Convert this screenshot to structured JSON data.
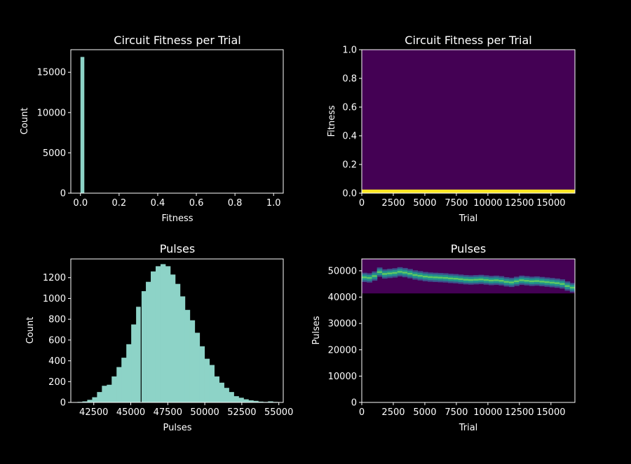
{
  "colors": {
    "background": "#000000",
    "foreground": "#ffffff",
    "hist_bar": "#8dd3c7",
    "heat_low": "#440154",
    "heat_mid": "#21918c",
    "heat_mid2": "#5ec962",
    "heat_high": "#fde725"
  },
  "chart_data": [
    {
      "type": "bar",
      "title": "Circuit Fitness per Trial",
      "xlabel": "Fitness",
      "ylabel": "Count",
      "xlim": [
        -0.05,
        1.05
      ],
      "ylim": [
        0,
        17800
      ],
      "xticks": [
        0.0,
        0.2,
        0.4,
        0.6,
        0.8,
        1.0
      ],
      "xtick_labels": [
        "0.0",
        "0.2",
        "0.4",
        "0.6",
        "0.8",
        "1.0"
      ],
      "yticks": [
        0,
        5000,
        10000,
        15000
      ],
      "ytick_labels": [
        "0",
        "5000",
        "10000",
        "15000"
      ],
      "bins": [
        {
          "x0": 0.0,
          "x1": 0.02,
          "count": 16900
        }
      ]
    },
    {
      "type": "heatmap",
      "title": "Circuit Fitness per Trial",
      "xlabel": "Trial",
      "ylabel": "Fitness",
      "xlim": [
        0,
        16900
      ],
      "ylim": [
        0,
        1.0
      ],
      "xticks": [
        0,
        2500,
        5000,
        7500,
        10000,
        12500,
        15000
      ],
      "xtick_labels": [
        "0",
        "2500",
        "5000",
        "7500",
        "10000",
        "12500",
        "15000"
      ],
      "yticks": [
        0.0,
        0.2,
        0.4,
        0.6,
        0.8,
        1.0
      ],
      "ytick_labels": [
        "0.0",
        "0.2",
        "0.4",
        "0.6",
        "0.8",
        "1.0"
      ],
      "bands": [
        {
          "y0": 0.0,
          "y1": 0.025,
          "level": "high"
        }
      ],
      "fill_level": "low"
    },
    {
      "type": "bar",
      "title": "Pulses",
      "xlabel": "Pulses",
      "ylabel": "Count",
      "xlim": [
        40950,
        55300
      ],
      "ylim": [
        0,
        1380
      ],
      "xticks": [
        42500,
        45000,
        47500,
        50000,
        52500,
        55000
      ],
      "xtick_labels": [
        "42500",
        "45000",
        "47500",
        "50000",
        "52500",
        "55000"
      ],
      "yticks": [
        0,
        200,
        400,
        600,
        800,
        1000,
        1200
      ],
      "ytick_labels": [
        "0",
        "200",
        "400",
        "600",
        "800",
        "1000",
        "1200"
      ],
      "bin_start": 41400,
      "bin_width": 330,
      "counts": [
        5,
        10,
        25,
        50,
        100,
        160,
        170,
        250,
        340,
        430,
        560,
        750,
        920,
        1070,
        1160,
        1260,
        1310,
        1330,
        1310,
        1230,
        1140,
        1020,
        890,
        790,
        670,
        540,
        420,
        360,
        250,
        190,
        140,
        100,
        60,
        45,
        30,
        20,
        15,
        8,
        5,
        10,
        5
      ],
      "gaps": [
        45700
      ]
    },
    {
      "type": "heatmap",
      "title": "Pulses",
      "xlabel": "Trial",
      "ylabel": "Pulses",
      "xlim": [
        0,
        16900
      ],
      "ylim": [
        0,
        54500
      ],
      "xticks": [
        0,
        2500,
        5000,
        7500,
        10000,
        12500,
        15000
      ],
      "xtick_labels": [
        "0",
        "2500",
        "5000",
        "7500",
        "10000",
        "12500",
        "15000"
      ],
      "yticks": [
        0,
        10000,
        20000,
        30000,
        40000,
        50000
      ],
      "ytick_labels": [
        "0",
        "10000",
        "20000",
        "30000",
        "40000",
        "50000"
      ],
      "region": {
        "y0": 41400,
        "y1": 54500
      },
      "band_width": 2200,
      "band_centers": [
        47500,
        47300,
        48000,
        49500,
        48800,
        49000,
        49200,
        49600,
        49300,
        48900,
        48400,
        48100,
        47800,
        47600,
        47500,
        47400,
        47300,
        47100,
        47000,
        46800,
        46600,
        46500,
        46600,
        46700,
        46500,
        46300,
        46400,
        46200,
        45800,
        45600,
        46000,
        46400,
        46200,
        46000,
        46100,
        45900,
        45700,
        45500,
        45300,
        45000,
        44200,
        43600
      ]
    }
  ]
}
